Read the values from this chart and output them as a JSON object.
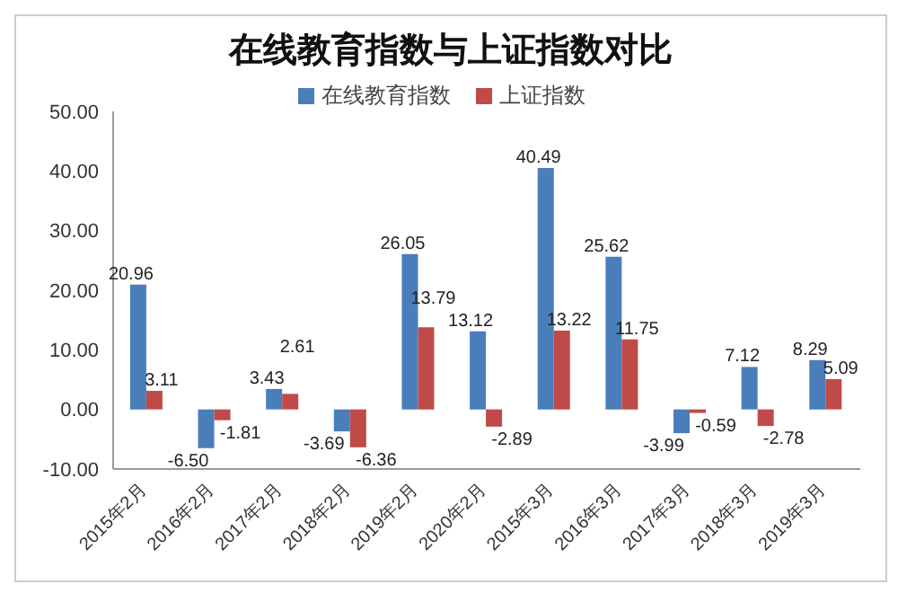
{
  "chart_data": {
    "type": "bar",
    "title": "在线教育指数与上证指数对比",
    "categories": [
      "2015年2月",
      "2016年2月",
      "2017年2月",
      "2018年2月",
      "2019年2月",
      "2020年2月",
      "2015年3月",
      "2016年3月",
      "2017年3月",
      "2018年3月",
      "2019年3月"
    ],
    "series": [
      {
        "name": "在线教育指数",
        "color": "#4a7ebb",
        "values": [
          20.96,
          -6.5,
          3.43,
          -3.69,
          26.05,
          13.12,
          40.49,
          25.62,
          -3.99,
          7.12,
          8.29
        ],
        "value_labels": [
          "20.96",
          "-6.50",
          "3.43",
          "-3.69",
          "26.05",
          "13.12",
          "40.49",
          "25.62",
          "-3.99",
          "7.12",
          "8.29"
        ]
      },
      {
        "name": "上证指数",
        "color": "#be4b48",
        "values": [
          3.11,
          -1.81,
          2.61,
          -6.36,
          13.79,
          -2.89,
          13.22,
          11.75,
          -0.59,
          -2.78,
          5.09
        ],
        "value_labels": [
          "3.11",
          "-1.81",
          "2.61",
          "-6.36",
          "13.79",
          "-2.89",
          "13.22",
          "11.75",
          "-0.59",
          "-2.78",
          "5.09"
        ]
      }
    ],
    "ylim": [
      -10,
      50
    ],
    "yticks": [
      {
        "value": -10,
        "label": "-10.00"
      },
      {
        "value": 0,
        "label": "0.00"
      },
      {
        "value": 10,
        "label": "10.00"
      },
      {
        "value": 20,
        "label": "20.00"
      },
      {
        "value": 30,
        "label": "30.00"
      },
      {
        "value": 40,
        "label": "40.00"
      },
      {
        "value": 50,
        "label": "50.00"
      }
    ],
    "grid": false,
    "legend": "top"
  }
}
